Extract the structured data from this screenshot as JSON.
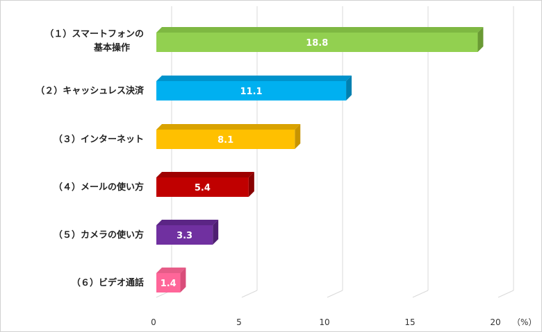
{
  "chart_data": {
    "type": "bar",
    "orientation": "horizontal",
    "categories": [
      [
        "（１）スマートフォンの",
        "基本操作"
      ],
      [
        "（２）キャッシュレス決済"
      ],
      [
        "（３）インターネット"
      ],
      [
        "（４）メールの使い方"
      ],
      [
        "（５）カメラの使い方"
      ],
      [
        "（６）ビデオ通話"
      ]
    ],
    "values": [
      18.8,
      11.1,
      8.1,
      5.4,
      3.3,
      1.4
    ],
    "value_labels": [
      "18.8",
      "11.1",
      "8.1",
      "5.4",
      "3.3",
      "1.4"
    ],
    "xlim": [
      0,
      20
    ],
    "xticks": [
      "0",
      "5",
      "10",
      "15",
      "20"
    ],
    "unit_label": "（%）",
    "grid": true,
    "colors": [
      "#92d050",
      "#00b0f0",
      "#ffc000",
      "#c00000",
      "#7030a0",
      "#ff6699"
    ],
    "side_colors": [
      "#6a9a34",
      "#0080b0",
      "#c89400",
      "#880000",
      "#4e1f72",
      "#d94d7a"
    ],
    "top_colors": [
      "#7eb842",
      "#0093cc",
      "#d9a200",
      "#9e0000",
      "#5b2585",
      "#e65c88"
    ]
  }
}
